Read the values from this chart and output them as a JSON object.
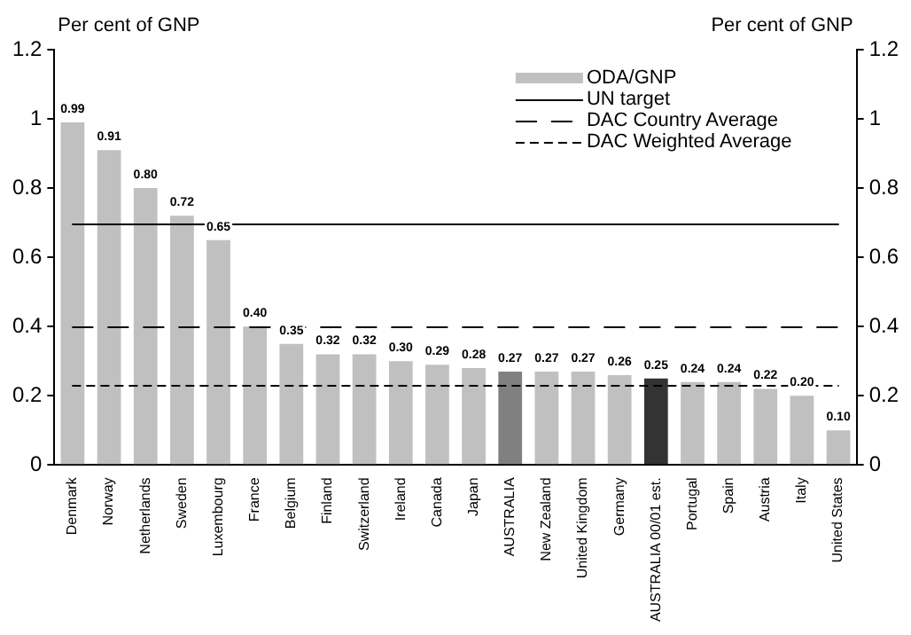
{
  "chart_data": {
    "type": "bar",
    "ylabel": "Per cent of GNP",
    "y2label": "Per cent of GNP",
    "categories": [
      "Denmark",
      "Norway",
      "Netherlands",
      "Sweden",
      "Luxembourg",
      "France",
      "Belgium",
      "Finland",
      "Switzerland",
      "Ireland",
      "Canada",
      "Japan",
      "AUSTRALIA",
      "New Zealand",
      "United Kingdom",
      "Germany",
      "AUSTRALIA 00/01 est.",
      "Portugal",
      "Spain",
      "Austria",
      "Italy",
      "United States"
    ],
    "series": [
      {
        "name": "ODA/GNP",
        "color": "#c0c0c0",
        "colors": [
          "#c0c0c0",
          "#c0c0c0",
          "#c0c0c0",
          "#c0c0c0",
          "#c0c0c0",
          "#c0c0c0",
          "#c0c0c0",
          "#c0c0c0",
          "#c0c0c0",
          "#c0c0c0",
          "#c0c0c0",
          "#c0c0c0",
          "#808080",
          "#c0c0c0",
          "#c0c0c0",
          "#c0c0c0",
          "#333333",
          "#c0c0c0",
          "#c0c0c0",
          "#c0c0c0",
          "#c0c0c0",
          "#c0c0c0"
        ],
        "values": [
          0.99,
          0.91,
          0.8,
          0.72,
          0.65,
          0.4,
          0.35,
          0.32,
          0.32,
          0.3,
          0.29,
          0.28,
          0.27,
          0.27,
          0.27,
          0.26,
          0.25,
          0.24,
          0.24,
          0.22,
          0.2,
          0.1
        ],
        "value_labels": [
          "0.99",
          "0.91",
          "0.80",
          "0.72",
          "0.65",
          "0.40",
          "0.35",
          "0.32",
          "0.32",
          "0.30",
          "0.29",
          "0.28",
          "0.27",
          "0.27",
          "0.27",
          "0.26",
          "0.25",
          "0.24",
          "0.24",
          "0.22",
          "0.20",
          "0.10"
        ]
      }
    ],
    "ylim": [
      0,
      1.2
    ],
    "yticks": [
      0,
      0.2,
      0.4,
      0.6,
      0.8,
      1,
      1.2
    ],
    "y2lim": [
      0,
      1.2
    ],
    "y2ticks": [
      0,
      0.2,
      0.4,
      0.6,
      0.8,
      1,
      1.2
    ],
    "ref_lines": [
      {
        "axis": "y",
        "value": 0.7,
        "label": "UN target",
        "color": "#000000",
        "line_style": "solid"
      },
      {
        "axis": "y",
        "value": 0.4,
        "label": "DAC Country Average",
        "color": "#000000",
        "line_style": "dashed"
      },
      {
        "axis": "y",
        "value": 0.23,
        "label": "DAC Weighted Average",
        "color": "#000000",
        "line_style": "dotted"
      }
    ],
    "grid": false,
    "legend": "top right"
  }
}
